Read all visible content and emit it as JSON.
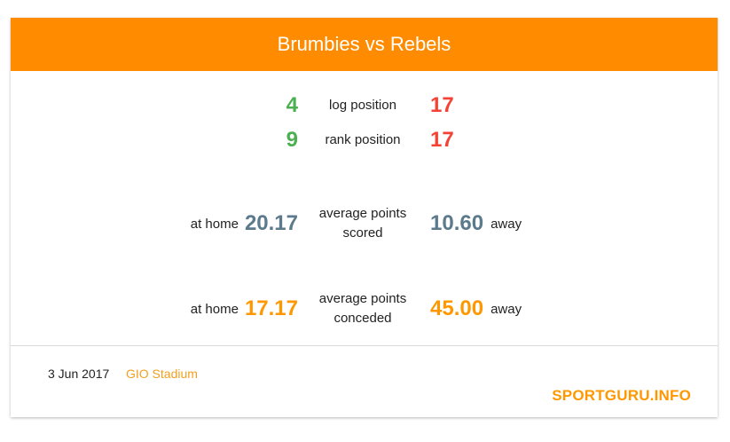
{
  "header": {
    "title": "Brumbies vs Rebels"
  },
  "positions": {
    "log": {
      "left": "4",
      "label": "log position",
      "right": "17"
    },
    "rank": {
      "left": "9",
      "label": "rank position",
      "right": "17"
    }
  },
  "scored": {
    "home_label": "at home",
    "home_value": "20.17",
    "label_line1": "average points",
    "label_line2": "scored",
    "away_value": "10.60",
    "away_label": "away"
  },
  "conceded": {
    "home_label": "at home",
    "home_value": "17.17",
    "label_line1": "average points",
    "label_line2": "conceded",
    "away_value": "45.00",
    "away_label": "away"
  },
  "footer": {
    "date": "3 Jun 2017",
    "venue": "GIO Stadium",
    "brand": "SPORTGURU.INFO"
  },
  "colors": {
    "header_bg": "#ff8c00",
    "good": "#4caf50",
    "bad": "#f44336",
    "scored": "#5b7a8c",
    "conceded": "#ff9800"
  }
}
